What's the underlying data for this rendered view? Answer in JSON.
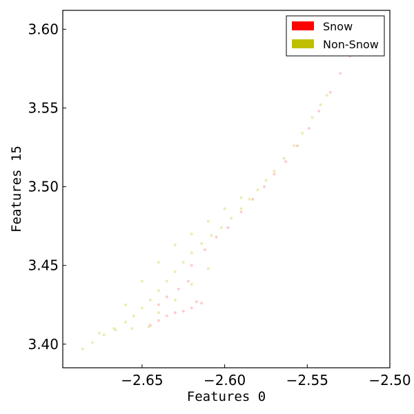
{
  "chart_data": {
    "type": "scatter",
    "xlabel": "Features 0",
    "ylabel": "Features 15",
    "xlim": [
      -2.698,
      -2.5
    ],
    "ylim": [
      3.385,
      3.612
    ],
    "x_ticks": [
      -2.65,
      -2.6,
      -2.55,
      -2.5
    ],
    "x_tick_labels": [
      "−2.65",
      "−2.60",
      "−2.55",
      "−2.50"
    ],
    "y_ticks": [
      3.4,
      3.45,
      3.5,
      3.55,
      3.6
    ],
    "y_tick_labels": [
      "3.40",
      "3.45",
      "3.50",
      "3.55",
      "3.60"
    ],
    "grid": false,
    "legend_position": "top-right",
    "series": [
      {
        "name": "Snow",
        "color": "#ff0000",
        "point_alpha": 0.2,
        "points": [
          [
            -2.645,
            3.412
          ],
          [
            -2.64,
            3.415
          ],
          [
            -2.635,
            3.418
          ],
          [
            -2.63,
            3.42
          ],
          [
            -2.625,
            3.421
          ],
          [
            -2.62,
            3.423
          ],
          [
            -2.64,
            3.425
          ],
          [
            -2.635,
            3.43
          ],
          [
            -2.628,
            3.435
          ],
          [
            -2.622,
            3.44
          ],
          [
            -2.617,
            3.427
          ],
          [
            -2.614,
            3.426
          ],
          [
            -2.62,
            3.45
          ],
          [
            -2.612,
            3.46
          ],
          [
            -2.605,
            3.468
          ],
          [
            -2.598,
            3.474
          ],
          [
            -2.59,
            3.484
          ],
          [
            -2.583,
            3.492
          ],
          [
            -2.576,
            3.5
          ],
          [
            -2.57,
            3.508
          ],
          [
            -2.563,
            3.516
          ],
          [
            -2.556,
            3.526
          ],
          [
            -2.549,
            3.537
          ],
          [
            -2.543,
            3.548
          ],
          [
            -2.536,
            3.56
          ],
          [
            -2.53,
            3.572
          ],
          [
            -2.524,
            3.583
          ],
          [
            -2.52,
            3.588
          ]
        ]
      },
      {
        "name": "Non-Snow",
        "color": "#bfbf00",
        "point_alpha": 0.3,
        "points": [
          [
            -2.686,
            3.397
          ],
          [
            -2.68,
            3.401
          ],
          [
            -2.673,
            3.406
          ],
          [
            -2.667,
            3.41
          ],
          [
            -2.66,
            3.414
          ],
          [
            -2.655,
            3.418
          ],
          [
            -2.65,
            3.423
          ],
          [
            -2.645,
            3.428
          ],
          [
            -2.64,
            3.434
          ],
          [
            -2.635,
            3.44
          ],
          [
            -2.63,
            3.446
          ],
          [
            -2.625,
            3.452
          ],
          [
            -2.62,
            3.458
          ],
          [
            -2.614,
            3.464
          ],
          [
            -2.608,
            3.469
          ],
          [
            -2.602,
            3.474
          ],
          [
            -2.596,
            3.48
          ],
          [
            -2.59,
            3.486
          ],
          [
            -2.585,
            3.492
          ],
          [
            -2.58,
            3.498
          ],
          [
            -2.575,
            3.504
          ],
          [
            -2.57,
            3.51
          ],
          [
            -2.564,
            3.518
          ],
          [
            -2.558,
            3.526
          ],
          [
            -2.553,
            3.534
          ],
          [
            -2.547,
            3.544
          ],
          [
            -2.542,
            3.552
          ],
          [
            -2.538,
            3.558
          ],
          [
            -2.676,
            3.407
          ],
          [
            -2.666,
            3.409
          ],
          [
            -2.656,
            3.41
          ],
          [
            -2.646,
            3.411
          ],
          [
            -2.66,
            3.425
          ],
          [
            -2.65,
            3.44
          ],
          [
            -2.64,
            3.452
          ],
          [
            -2.63,
            3.463
          ],
          [
            -2.62,
            3.47
          ],
          [
            -2.61,
            3.478
          ],
          [
            -2.6,
            3.486
          ],
          [
            -2.59,
            3.493
          ],
          [
            -2.64,
            3.42
          ],
          [
            -2.63,
            3.428
          ],
          [
            -2.62,
            3.438
          ],
          [
            -2.61,
            3.448
          ]
        ]
      }
    ]
  }
}
